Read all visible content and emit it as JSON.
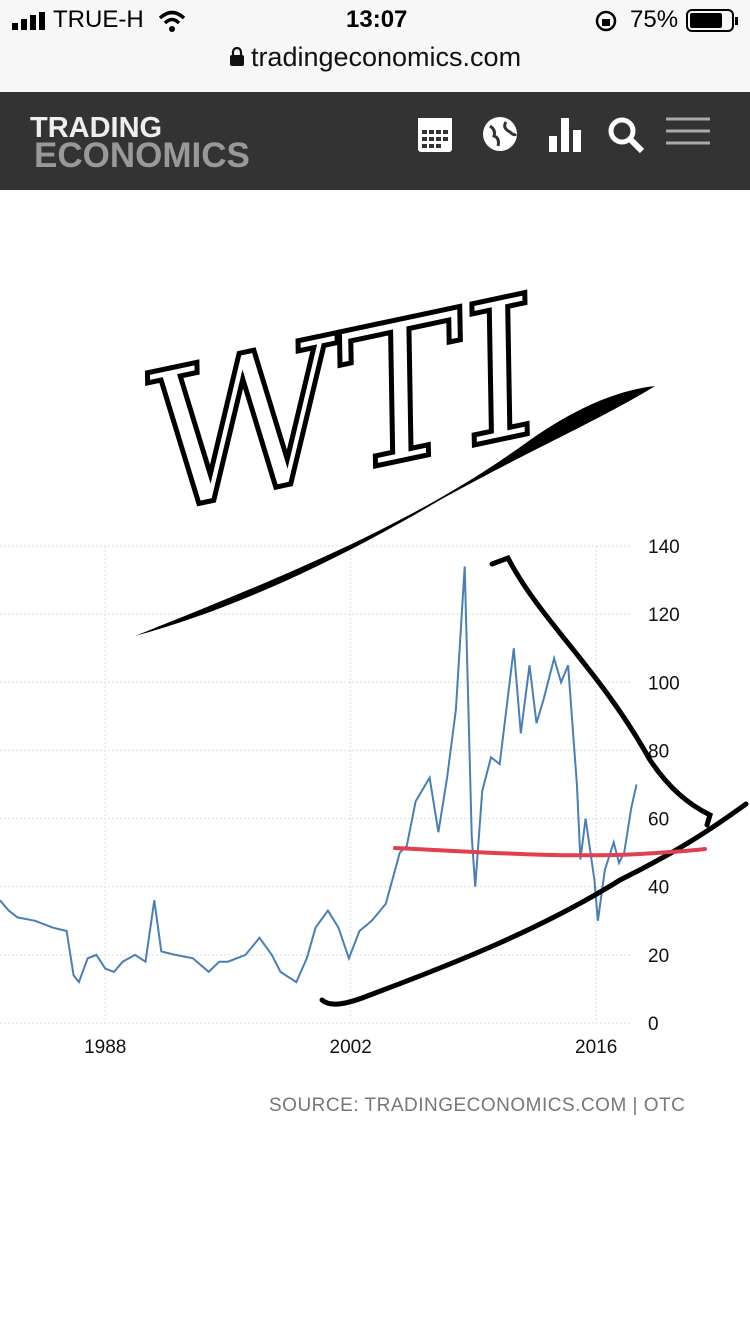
{
  "status_bar": {
    "carrier": "TRUE-H",
    "time": "13:07",
    "battery": "75%"
  },
  "browser": {
    "url": "tradingeconomics.com"
  },
  "header": {
    "logo_top": "TRADING",
    "logo_bottom": "ECONOMICS"
  },
  "annotation": "WTI",
  "chart_data": {
    "type": "line",
    "x": [
      1982.0,
      1982.5,
      1983,
      1984,
      1985,
      1985.8,
      1986.2,
      1986.5,
      1987,
      1987.5,
      1988,
      1988.5,
      1989,
      1989.7,
      1990.3,
      1990.8,
      1991.2,
      1992,
      1993,
      1993.9,
      1994.5,
      1995,
      1996,
      1996.8,
      1997.5,
      1998,
      1998.9,
      1999.5,
      2000,
      2000.7,
      2001.3,
      2001.9,
      2002.5,
      2003.2,
      2004,
      2004.8,
      2005.2,
      2005.7,
      2006.5,
      2007,
      2007.5,
      2008.0,
      2008.5,
      2008.9,
      2009.1,
      2009.5,
      2010,
      2010.5,
      2011.3,
      2011.7,
      2012.2,
      2012.6,
      2013,
      2013.6,
      2014.0,
      2014.4,
      2014.9,
      2015.1,
      2015.4,
      2015.9,
      2016.1,
      2016.5,
      2017,
      2017.3,
      2017.6,
      2018,
      2018.3
    ],
    "values": [
      36,
      33,
      31,
      30,
      28,
      27,
      14,
      12,
      19,
      20,
      16,
      15,
      18,
      20,
      18,
      36,
      21,
      20,
      19,
      15,
      18,
      18,
      20,
      25,
      20,
      15,
      12,
      19,
      28,
      33,
      28,
      19,
      27,
      30,
      35,
      50,
      52,
      65,
      72,
      56,
      72,
      92,
      134,
      55,
      40,
      68,
      78,
      76,
      110,
      85,
      105,
      88,
      95,
      107,
      100,
      105,
      70,
      48,
      60,
      42,
      30,
      45,
      53,
      47,
      50,
      63,
      70
    ],
    "color": "#4a7fb5",
    "xlim": [
      1982,
      2018.5
    ],
    "xticks": [
      1988,
      2002,
      2016
    ],
    "ylim": [
      0,
      140
    ],
    "yticks": [
      0,
      20,
      40,
      60,
      80,
      100,
      120,
      140
    ],
    "grid": true
  },
  "source": "SOURCE: TRADINGECONOMICS.COM | OTC"
}
